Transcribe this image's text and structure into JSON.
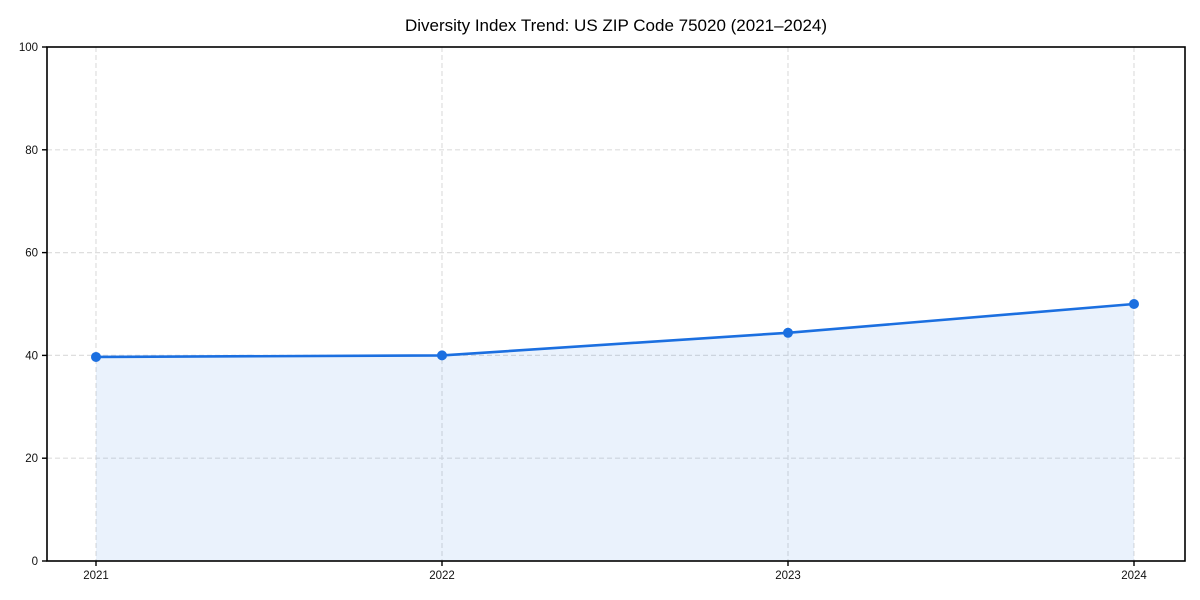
{
  "chart_data": {
    "type": "area",
    "title": "Diversity Index Trend: US ZIP Code 75020 (2021–2024)",
    "x": [
      "2021",
      "2022",
      "2023",
      "2024"
    ],
    "series": [
      {
        "name": "Diversity Index",
        "values": [
          39.7,
          40.0,
          44.4,
          50.0
        ]
      }
    ],
    "xlabel": "",
    "ylabel": "",
    "ylim": [
      0,
      100
    ],
    "yticks": [
      0,
      20,
      40,
      60,
      80,
      100
    ],
    "grid": "dashed",
    "legend_position": "none",
    "colors": {
      "line": "#1b6fe0",
      "marker": "#1b6fe0",
      "fill": "#1b6fe0",
      "fill_opacity": "0.09",
      "grid": "#dedede",
      "spine": "#000000",
      "tick_label": "#111111",
      "title": "#000000",
      "background": "#ffffff"
    }
  }
}
